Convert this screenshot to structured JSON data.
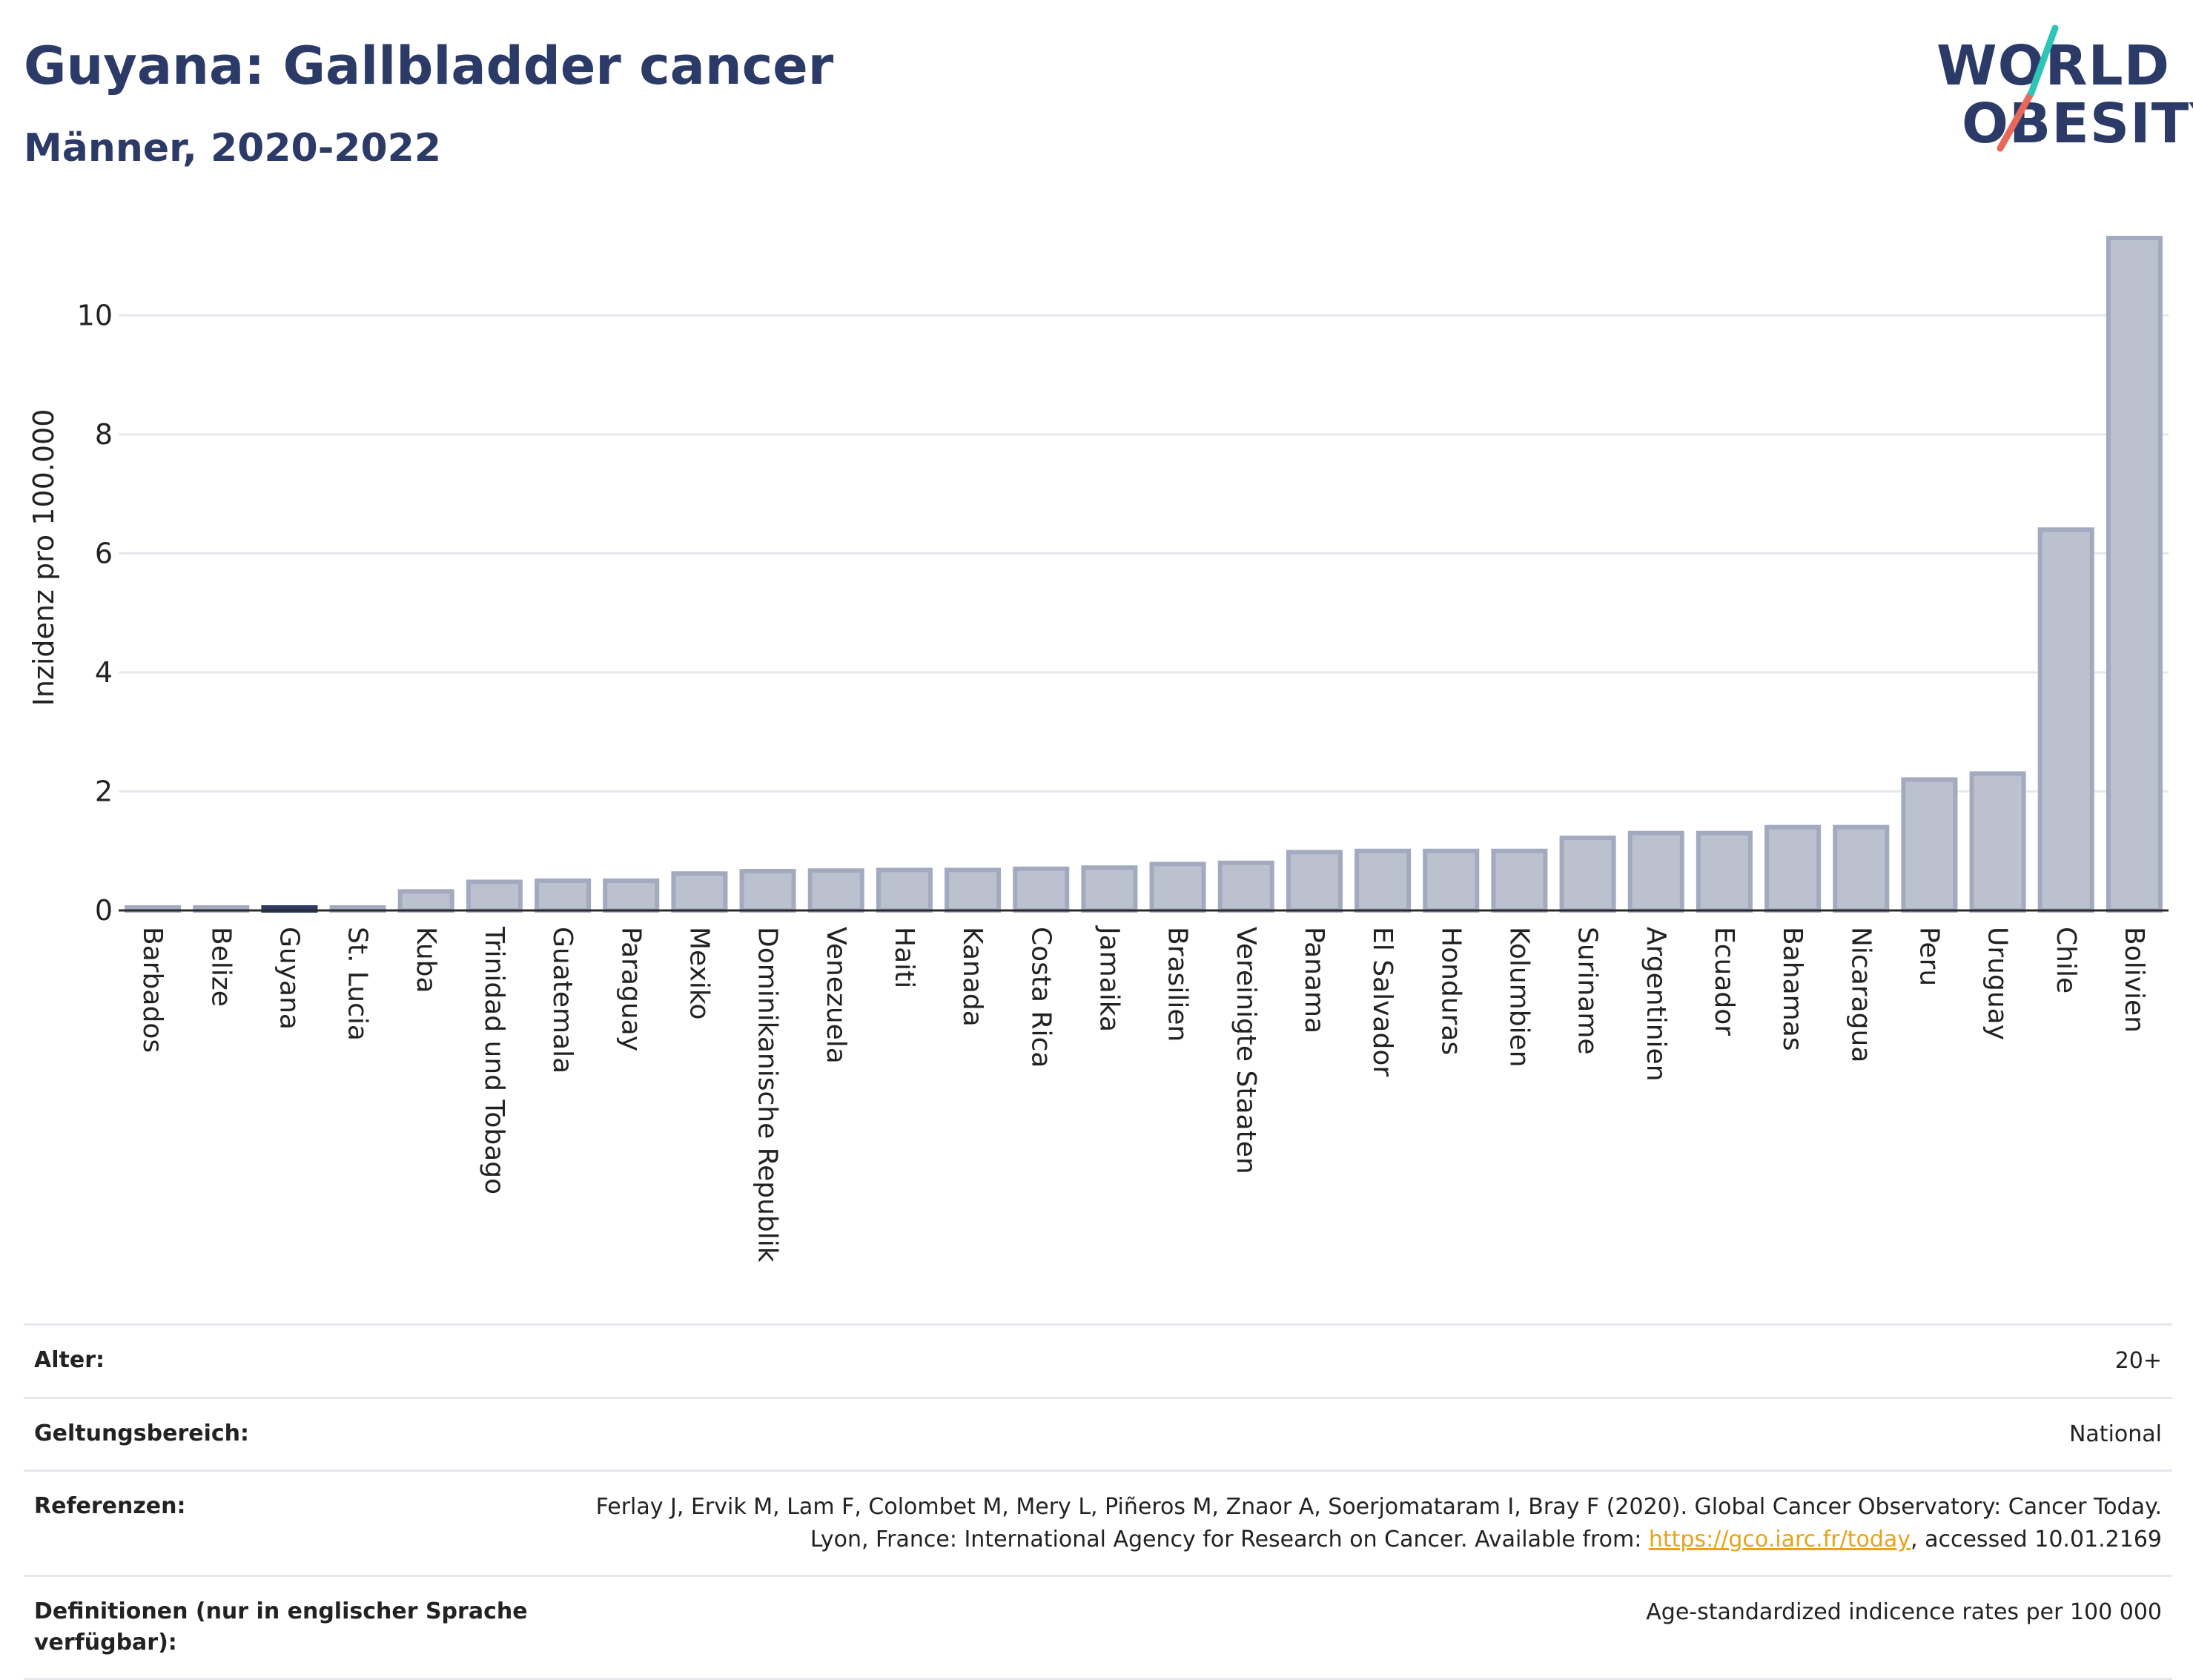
{
  "header": {
    "title": "Guyana: Gallbladder cancer",
    "subtitle": "Männer, 2020-2022"
  },
  "logo": {
    "line1": "WORLD",
    "line2": "OBESITY"
  },
  "chart_data": {
    "type": "bar",
    "title": "Guyana: Gallbladder cancer",
    "subtitle": "Männer, 2020-2022",
    "xlabel": "",
    "ylabel": "Inzidenz pro 100.000",
    "ylim": [
      0,
      11.5
    ],
    "yticks": [
      0,
      2,
      4,
      6,
      8,
      10
    ],
    "grid": true,
    "highlight": "Guyana",
    "colors": {
      "bar": "#bcc1d0",
      "bar_edge": "#a3aac0",
      "highlight": "#2b3a67"
    },
    "categories": [
      "Barbados",
      "Belize",
      "Guyana",
      "St. Lucia",
      "Kuba",
      "Trinidad und Tobago",
      "Guatemala",
      "Paraguay",
      "Mexiko",
      "Dominikanische Republik",
      "Venezuela",
      "Haiti",
      "Kanada",
      "Costa Rica",
      "Jamaika",
      "Brasilien",
      "Vereinigte Staaten",
      "Panama",
      "El Salvador",
      "Honduras",
      "Kolumbien",
      "Suriname",
      "Argentinien",
      "Ecuador",
      "Bahamas",
      "Nicaragua",
      "Peru",
      "Uruguay",
      "Chile",
      "Bolivien"
    ],
    "values": [
      0.05,
      0.05,
      0.05,
      0.05,
      0.32,
      0.48,
      0.5,
      0.5,
      0.62,
      0.66,
      0.67,
      0.68,
      0.68,
      0.7,
      0.72,
      0.78,
      0.8,
      0.98,
      1.0,
      1.0,
      1.0,
      1.22,
      1.3,
      1.3,
      1.4,
      1.4,
      2.2,
      2.3,
      6.4,
      11.3
    ]
  },
  "info": {
    "age_label": "Alter:",
    "age_value": "20+",
    "scope_label": "Geltungsbereich:",
    "scope_value": "National",
    "ref_label": "Referenzen:",
    "ref_text_1": "Ferlay J, Ervik M, Lam F, Colombet M, Mery L, Piñeros M, Znaor A, Soerjomataram I, Bray F (2020). Global Cancer Observatory: Cancer Today. Lyon, France: International Agency for Research on Cancer. Available from: ",
    "ref_link": "https://gco.iarc.fr/today",
    "ref_text_2": ", accessed 10.01.2169",
    "def_label": "Definitionen (nur in englischer Sprache verfügbar):",
    "def_value": "Age-standardized indicence rates per 100 000"
  }
}
